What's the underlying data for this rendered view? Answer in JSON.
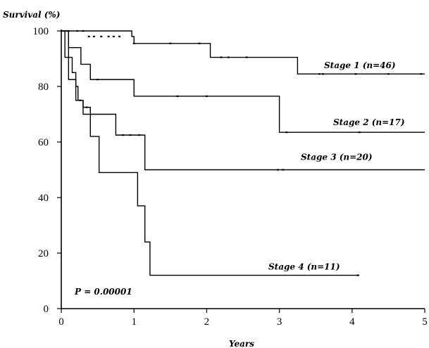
{
  "chart_data": {
    "type": "line",
    "subtype": "kaplan-meier step",
    "title": "",
    "xlabel": "Years",
    "ylabel": "Survival (%)",
    "xlim": [
      0,
      5
    ],
    "ylim": [
      0,
      100
    ],
    "xticks": [
      0,
      1,
      2,
      3,
      4,
      5
    ],
    "yticks": [
      0,
      20,
      40,
      60,
      80,
      100
    ],
    "grid": false,
    "annotation": "P = 0.00001",
    "series": [
      {
        "name": "Stage 1 (n=46)",
        "steps": [
          [
            0,
            100
          ],
          [
            0.97,
            98
          ],
          [
            1.0,
            95.5
          ],
          [
            2.02,
            95.5
          ],
          [
            2.05,
            90.5
          ],
          [
            3.25,
            84.5
          ],
          [
            5.0,
            84.5
          ]
        ],
        "censored": [
          [
            0.1,
            100
          ],
          [
            0.22,
            100
          ],
          [
            0.3,
            100
          ],
          [
            0.38,
            98
          ],
          [
            0.45,
            98
          ],
          [
            0.55,
            98
          ],
          [
            0.65,
            98
          ],
          [
            0.72,
            98
          ],
          [
            0.8,
            98
          ],
          [
            1.0,
            95.5
          ],
          [
            1.5,
            95.5
          ],
          [
            1.9,
            95.5
          ],
          [
            2.2,
            90.5
          ],
          [
            2.3,
            90.5
          ],
          [
            2.55,
            90.5
          ],
          [
            3.55,
            84.5
          ],
          [
            3.6,
            84.5
          ],
          [
            4.05,
            84.5
          ],
          [
            4.5,
            84.5
          ],
          [
            4.95,
            84.5
          ]
        ]
      },
      {
        "name": "Stage 2 (n=17)",
        "steps": [
          [
            0,
            100
          ],
          [
            0.1,
            94
          ],
          [
            0.27,
            88
          ],
          [
            0.4,
            82.5
          ],
          [
            1.0,
            76.5
          ],
          [
            3.0,
            63.5
          ],
          [
            5.0,
            63.5
          ]
        ],
        "censored": [
          [
            0.5,
            82.5
          ],
          [
            1.6,
            76.5
          ],
          [
            2.0,
            76.5
          ],
          [
            3.1,
            63.5
          ],
          [
            4.1,
            63.5
          ]
        ]
      },
      {
        "name": "Stage 3 (n=20)",
        "steps": [
          [
            0,
            100
          ],
          [
            0.05,
            90.5
          ],
          [
            0.15,
            85
          ],
          [
            0.2,
            80
          ],
          [
            0.23,
            75
          ],
          [
            0.3,
            70
          ],
          [
            0.75,
            62.5
          ],
          [
            1.15,
            50
          ],
          [
            5.0,
            50
          ]
        ],
        "censored": [
          [
            0.26,
            75
          ],
          [
            0.85,
            62.5
          ],
          [
            0.95,
            62.5
          ],
          [
            1.07,
            62.5
          ],
          [
            2.98,
            50
          ],
          [
            3.05,
            50
          ]
        ]
      },
      {
        "name": "Stage 4 (n=11)",
        "steps": [
          [
            0,
            100
          ],
          [
            0.1,
            82.5
          ],
          [
            0.2,
            75
          ],
          [
            0.3,
            72.5
          ],
          [
            0.4,
            62
          ],
          [
            0.52,
            49
          ],
          [
            1.05,
            37
          ],
          [
            1.15,
            24
          ],
          [
            1.22,
            12
          ],
          [
            4.1,
            12
          ]
        ],
        "censored": [
          [
            0.35,
            72.5
          ],
          [
            4.08,
            12
          ]
        ]
      }
    ]
  }
}
